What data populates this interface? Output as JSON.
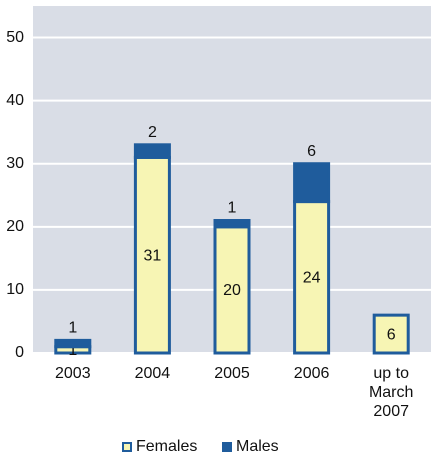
{
  "chart_data": {
    "type": "stacked_bar",
    "categories": [
      "2003",
      "2004",
      "2005",
      "2006",
      "up to March 2007"
    ],
    "series": [
      {
        "name": "Females",
        "color": "#f7f5b4",
        "edge": "#1f5c9c",
        "values": [
          1,
          31,
          20,
          24,
          6
        ]
      },
      {
        "name": "Males",
        "color": "#1f5c9c",
        "values": [
          1,
          2,
          1,
          6,
          null
        ]
      }
    ],
    "ylim": [
      0,
      55
    ],
    "yticks": [
      0,
      10,
      20,
      30,
      40,
      50
    ],
    "grid": true
  }
}
